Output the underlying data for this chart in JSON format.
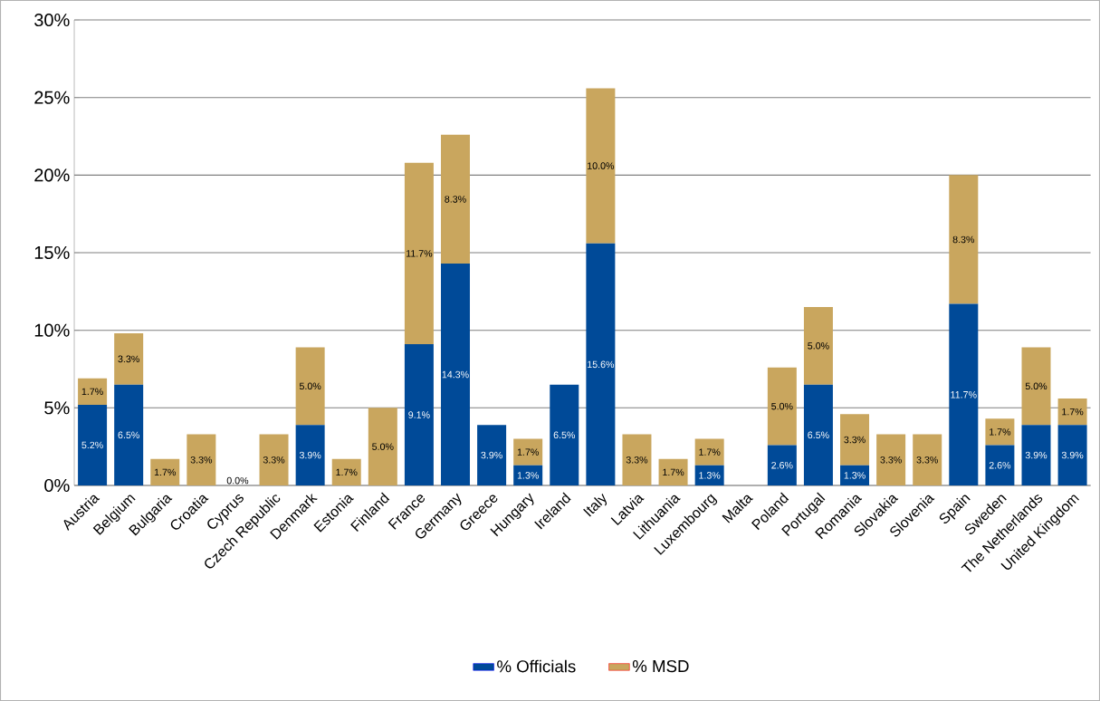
{
  "chart_data": {
    "type": "bar",
    "stacked": true,
    "categories": [
      "Austria",
      "Belgium",
      "Bulgaria",
      "Croatia",
      "Cyprus",
      "Czech Republic",
      "Denmark",
      "Estonia",
      "Finland",
      "France",
      "Germany",
      "Greece",
      "Hungary",
      "Ireland",
      "Italy",
      "Latvia",
      "Lithuania",
      "Luxembourg",
      "Malta",
      "Poland",
      "Portugal",
      "Romania",
      "Slovakia",
      "Slovenia",
      "Spain",
      "Sweden",
      "The Netherlands",
      "United Kingdom"
    ],
    "series": [
      {
        "name": "% Officials",
        "color": "#004a98",
        "values": [
          5.2,
          6.5,
          0,
          0,
          0,
          0,
          3.9,
          0,
          0,
          9.1,
          14.3,
          3.9,
          1.3,
          6.5,
          15.6,
          0,
          0,
          1.3,
          0,
          2.6,
          6.5,
          1.3,
          0,
          0,
          11.7,
          2.6,
          3.9,
          3.9
        ],
        "value_labels": [
          "5.2%",
          "6.5%",
          null,
          null,
          "0.0%",
          null,
          "3.9%",
          null,
          null,
          "9.1%",
          "14.3%",
          "3.9%",
          "1.3%",
          "6.5%",
          "15.6%",
          null,
          null,
          "1.3%",
          null,
          "2.6%",
          "6.5%",
          "1.3%",
          null,
          null,
          "11.7%",
          "2.6%",
          "3.9%",
          "3.9%"
        ]
      },
      {
        "name": "% MSD",
        "color": "#c9a65e",
        "values": [
          1.7,
          3.3,
          1.7,
          3.3,
          0,
          3.3,
          5.0,
          1.7,
          5.0,
          11.7,
          8.3,
          0,
          1.7,
          0,
          10.0,
          3.3,
          1.7,
          1.7,
          0,
          5.0,
          5.0,
          3.3,
          3.3,
          3.3,
          8.3,
          1.7,
          5.0,
          1.7
        ],
        "value_labels": [
          "1.7%",
          "3.3%",
          "1.7%",
          "3.3%",
          null,
          "3.3%",
          "5.0%",
          "1.7%",
          "5.0%",
          "11.7%",
          "8.3%",
          null,
          "1.7%",
          null,
          "10.0%",
          "3.3%",
          "1.7%",
          "1.7%",
          null,
          "5.0%",
          "5.0%",
          "3.3%",
          "3.3%",
          "3.3%",
          "8.3%",
          "1.7%",
          "5.0%",
          "1.7%"
        ]
      }
    ],
    "ylim": [
      0,
      30
    ],
    "yticks": [
      {
        "value": 0,
        "label": "0%"
      },
      {
        "value": 5,
        "label": "5%"
      },
      {
        "value": 10,
        "label": "10%"
      },
      {
        "value": 15,
        "label": "15%"
      },
      {
        "value": 20,
        "label": "20%"
      },
      {
        "value": 25,
        "label": "25%"
      },
      {
        "value": 30,
        "label": "30%"
      }
    ],
    "grid": "y",
    "legend": "bottom"
  }
}
